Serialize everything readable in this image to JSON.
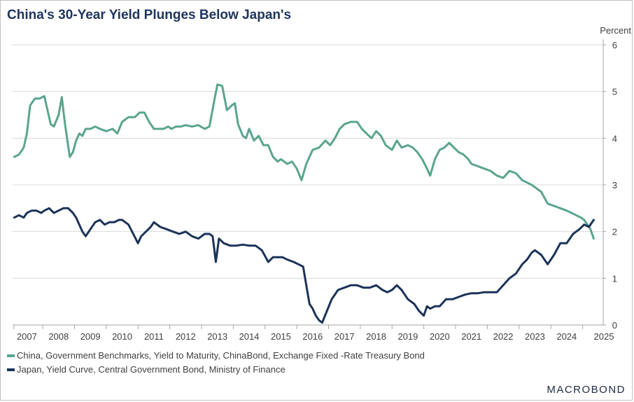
{
  "title": "China's 30-Year Yield Plunges Below Japan's",
  "unit_label": "Percent",
  "brand": "MACROBOND",
  "chart_data": {
    "type": "line",
    "title": "China's 30-Year Yield Plunges Below Japan's",
    "ylabel": "Percent",
    "xlabel": "",
    "ylim": [
      0,
      6
    ],
    "yticks": [
      0,
      1,
      2,
      3,
      4,
      5,
      6
    ],
    "xlim": [
      2006.55,
      2025.15
    ],
    "xticks": [
      "2007",
      "2008",
      "2009",
      "2010",
      "2011",
      "2012",
      "2013",
      "2014",
      "2015",
      "2016",
      "2017",
      "2018",
      "2019",
      "2020",
      "2021",
      "2022",
      "2023",
      "2024",
      "2025"
    ],
    "grid": true,
    "legend_position": "bottom-left",
    "series": [
      {
        "name": "China, Government Benchmarks, Yield to Maturity, ChinaBond, Exchange Fixed -Rate Treasury Bond",
        "color": "#5aa58c",
        "x": [
          2006.6,
          2006.75,
          2006.9,
          2007.0,
          2007.1,
          2007.25,
          2007.4,
          2007.55,
          2007.65,
          2007.75,
          2007.85,
          2008.0,
          2008.1,
          2008.2,
          2008.35,
          2008.45,
          2008.55,
          2008.65,
          2008.75,
          2008.85,
          2009.0,
          2009.15,
          2009.3,
          2009.5,
          2009.7,
          2009.85,
          2010.0,
          2010.2,
          2010.4,
          2010.55,
          2010.7,
          2010.85,
          2011.0,
          2011.15,
          2011.3,
          2011.45,
          2011.55,
          2011.7,
          2011.85,
          2012.0,
          2012.2,
          2012.4,
          2012.6,
          2012.75,
          2012.9,
          2013.0,
          2013.15,
          2013.3,
          2013.45,
          2013.55,
          2013.65,
          2013.8,
          2013.9,
          2014.0,
          2014.15,
          2014.3,
          2014.45,
          2014.6,
          2014.75,
          2014.9,
          2015.0,
          2015.2,
          2015.35,
          2015.5,
          2015.65,
          2015.8,
          2016.0,
          2016.2,
          2016.4,
          2016.55,
          2016.7,
          2016.85,
          2017.0,
          2017.2,
          2017.4,
          2017.55,
          2017.7,
          2017.85,
          2018.0,
          2018.15,
          2018.3,
          2018.5,
          2018.65,
          2018.8,
          2019.0,
          2019.15,
          2019.3,
          2019.45,
          2019.6,
          2019.7,
          2019.85,
          2020.0,
          2020.15,
          2020.3,
          2020.45,
          2020.6,
          2020.75,
          2020.9,
          2021.0,
          2021.2,
          2021.4,
          2021.6,
          2021.8,
          2022.0,
          2022.2,
          2022.4,
          2022.6,
          2022.75,
          2022.9,
          2023.0,
          2023.2,
          2023.4,
          2023.6,
          2023.8,
          2024.0,
          2024.15,
          2024.3,
          2024.45,
          2024.55,
          2024.65,
          2024.75,
          2024.85
        ],
        "values": [
          3.6,
          3.65,
          3.8,
          4.1,
          4.7,
          4.85,
          4.85,
          4.9,
          4.6,
          4.3,
          4.25,
          4.5,
          4.88,
          4.3,
          3.6,
          3.7,
          3.95,
          4.1,
          4.05,
          4.2,
          4.2,
          4.25,
          4.2,
          4.15,
          4.2,
          4.1,
          4.35,
          4.45,
          4.45,
          4.55,
          4.55,
          4.35,
          4.2,
          4.2,
          4.2,
          4.25,
          4.2,
          4.25,
          4.25,
          4.28,
          4.25,
          4.28,
          4.2,
          4.25,
          4.8,
          5.15,
          5.12,
          4.6,
          4.7,
          4.75,
          4.3,
          4.05,
          4.0,
          4.2,
          3.95,
          4.05,
          3.85,
          3.85,
          3.6,
          3.5,
          3.55,
          3.45,
          3.5,
          3.35,
          3.1,
          3.45,
          3.75,
          3.8,
          3.95,
          3.85,
          4.0,
          4.2,
          4.3,
          4.35,
          4.35,
          4.2,
          4.1,
          4.0,
          4.15,
          4.05,
          3.85,
          3.75,
          3.95,
          3.8,
          3.85,
          3.8,
          3.7,
          3.55,
          3.35,
          3.2,
          3.55,
          3.75,
          3.8,
          3.9,
          3.8,
          3.7,
          3.65,
          3.55,
          3.45,
          3.4,
          3.35,
          3.3,
          3.2,
          3.15,
          3.3,
          3.25,
          3.1,
          3.05,
          3.0,
          2.95,
          2.85,
          2.6,
          2.55,
          2.5,
          2.45,
          2.4,
          2.35,
          2.3,
          2.25,
          2.15,
          2.05,
          1.85
        ]
      },
      {
        "name": "Japan, Yield Curve, Central Government Bond, Ministry of Finance",
        "color": "#1b3358",
        "x": [
          2006.6,
          2006.75,
          2006.9,
          2007.0,
          2007.15,
          2007.3,
          2007.45,
          2007.55,
          2007.7,
          2007.85,
          2008.0,
          2008.15,
          2008.3,
          2008.45,
          2008.55,
          2008.65,
          2008.75,
          2008.85,
          2009.0,
          2009.15,
          2009.3,
          2009.45,
          2009.6,
          2009.75,
          2009.9,
          2010.0,
          2010.2,
          2010.35,
          2010.5,
          2010.6,
          2010.75,
          2010.9,
          2011.0,
          2011.2,
          2011.4,
          2011.6,
          2011.8,
          2012.0,
          2012.2,
          2012.4,
          2012.6,
          2012.75,
          2012.85,
          2012.95,
          2013.05,
          2013.2,
          2013.4,
          2013.6,
          2013.8,
          2014.0,
          2014.2,
          2014.4,
          2014.6,
          2014.75,
          2014.9,
          2015.05,
          2015.2,
          2015.4,
          2015.55,
          2015.7,
          2015.8,
          2015.9,
          2016.0,
          2016.1,
          2016.2,
          2016.3,
          2016.45,
          2016.6,
          2016.8,
          2017.0,
          2017.2,
          2017.4,
          2017.6,
          2017.8,
          2018.0,
          2018.2,
          2018.35,
          2018.5,
          2018.65,
          2018.8,
          2019.0,
          2019.2,
          2019.35,
          2019.5,
          2019.6,
          2019.7,
          2019.85,
          2020.0,
          2020.2,
          2020.4,
          2020.6,
          2020.8,
          2021.0,
          2021.2,
          2021.4,
          2021.6,
          2021.8,
          2022.0,
          2022.2,
          2022.4,
          2022.6,
          2022.75,
          2022.9,
          2023.0,
          2023.2,
          2023.4,
          2023.6,
          2023.8,
          2024.0,
          2024.2,
          2024.4,
          2024.55,
          2024.7,
          2024.85
        ],
        "values": [
          2.3,
          2.35,
          2.3,
          2.4,
          2.45,
          2.45,
          2.4,
          2.45,
          2.5,
          2.4,
          2.45,
          2.5,
          2.5,
          2.4,
          2.3,
          2.15,
          2.0,
          1.9,
          2.05,
          2.2,
          2.25,
          2.15,
          2.2,
          2.2,
          2.25,
          2.25,
          2.15,
          1.95,
          1.75,
          1.9,
          2.0,
          2.1,
          2.2,
          2.1,
          2.05,
          2.0,
          1.95,
          2.0,
          1.9,
          1.85,
          1.95,
          1.95,
          1.9,
          1.35,
          1.85,
          1.75,
          1.7,
          1.7,
          1.72,
          1.7,
          1.7,
          1.6,
          1.35,
          1.45,
          1.45,
          1.45,
          1.4,
          1.35,
          1.3,
          1.25,
          0.85,
          0.45,
          0.35,
          0.2,
          0.1,
          0.05,
          0.3,
          0.55,
          0.75,
          0.8,
          0.85,
          0.85,
          0.8,
          0.8,
          0.85,
          0.75,
          0.7,
          0.75,
          0.85,
          0.75,
          0.55,
          0.45,
          0.3,
          0.2,
          0.4,
          0.35,
          0.4,
          0.4,
          0.55,
          0.55,
          0.6,
          0.65,
          0.68,
          0.68,
          0.7,
          0.7,
          0.7,
          0.85,
          1.0,
          1.1,
          1.3,
          1.4,
          1.55,
          1.6,
          1.5,
          1.3,
          1.5,
          1.75,
          1.75,
          1.95,
          2.05,
          2.15,
          2.1,
          2.25
        ]
      }
    ]
  }
}
